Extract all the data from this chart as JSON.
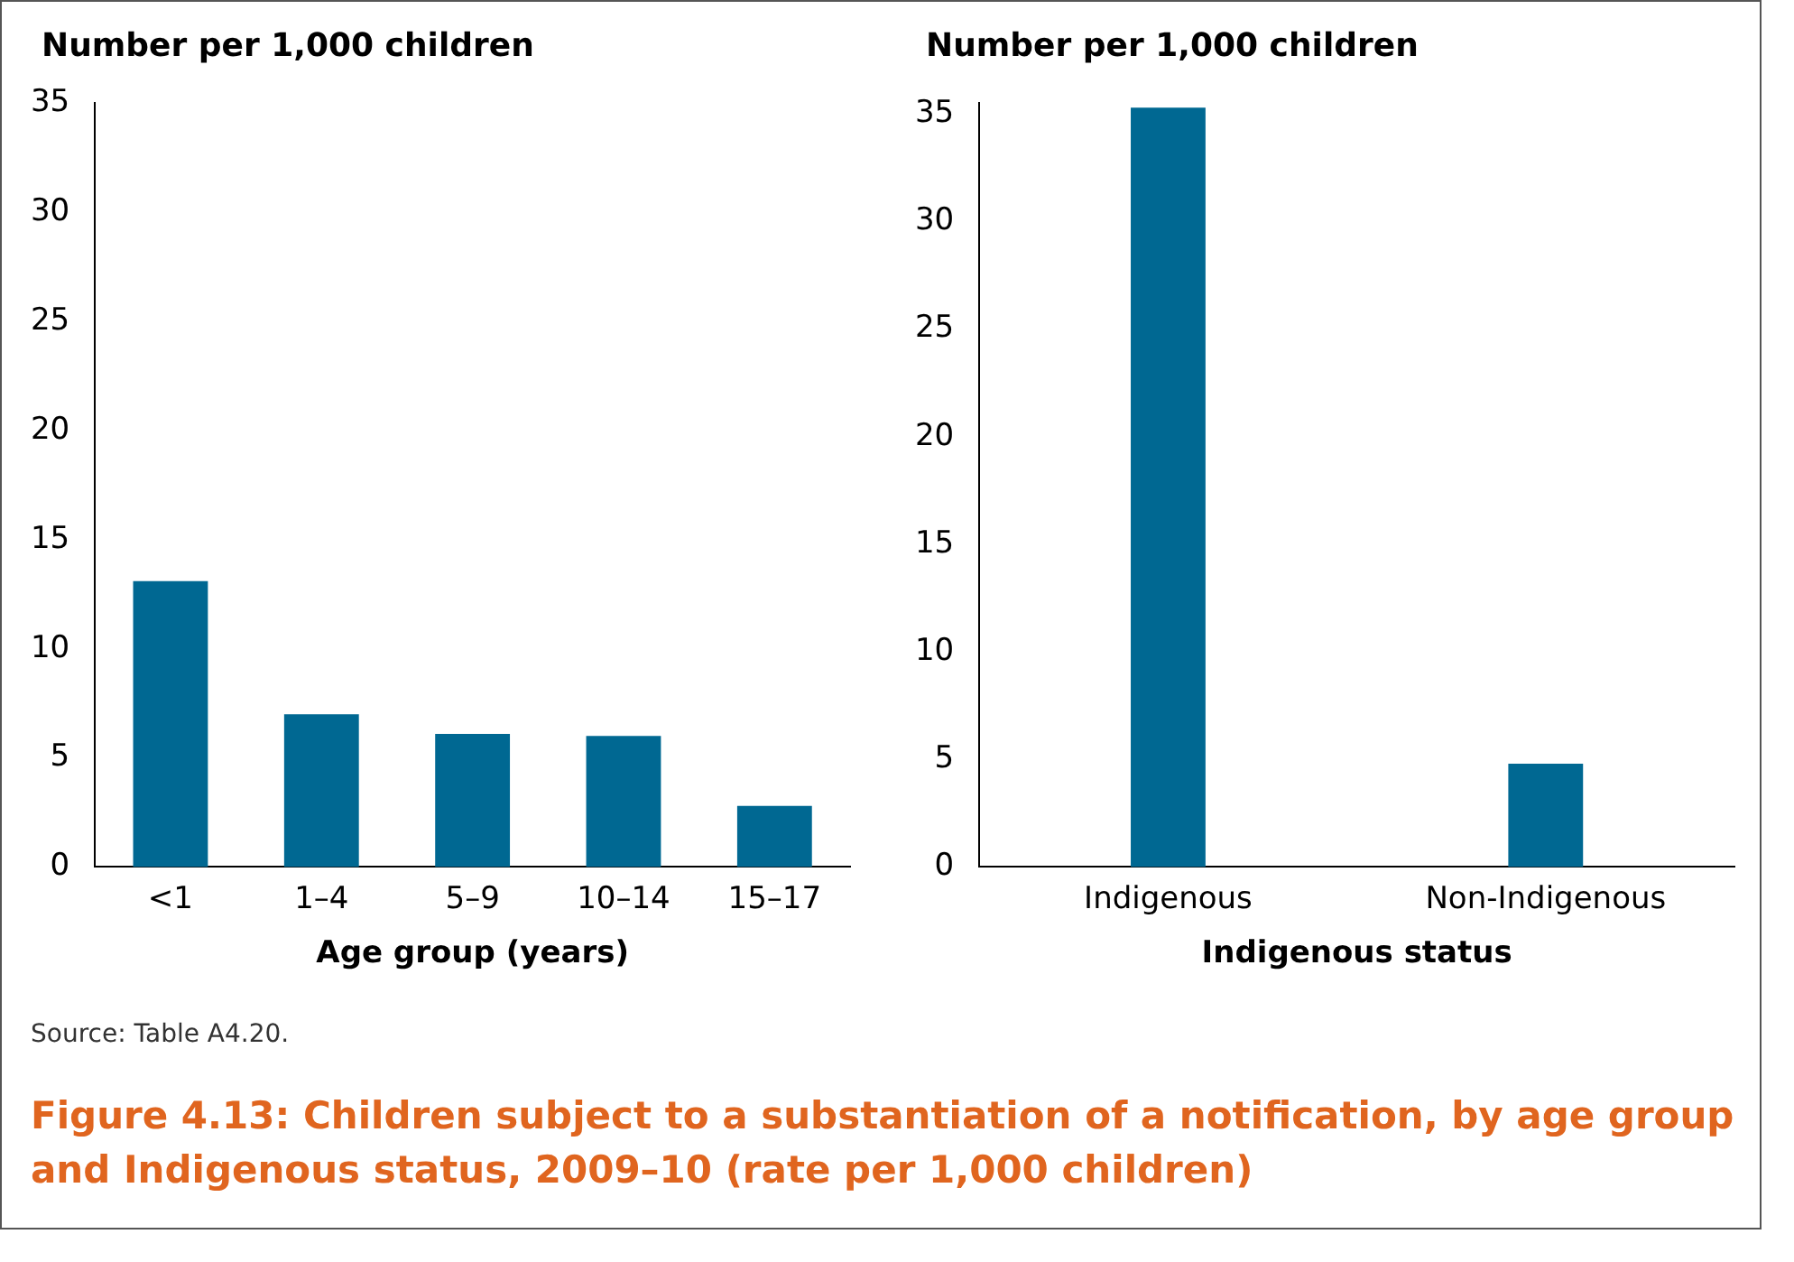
{
  "chart_data": [
    {
      "type": "bar",
      "ylabel": "Number per 1,000 children",
      "xlabel": "Age group (years)",
      "categories": [
        "<1",
        "1–4",
        "5–9",
        "10–14",
        "15–17"
      ],
      "values": [
        13.1,
        7.0,
        6.1,
        6.0,
        2.8
      ],
      "color": "#006892",
      "ylim": [
        0,
        35
      ],
      "yticks": [
        0,
        5,
        10,
        15,
        20,
        25,
        30,
        35
      ],
      "grid": false,
      "legend": false,
      "annotations": [
        "Source: Table A4.20."
      ],
      "title": "Figure 4.13: Children subject to a substantiation of a notification, by age group and Indigenous status, 2009–10 (rate per 1,000 children)"
    },
    {
      "type": "bar",
      "ylabel": "Number per 1,000 children",
      "xlabel": "Indigenous status",
      "categories": [
        "Indigenous",
        "Non-Indigenous"
      ],
      "values": [
        35.3,
        4.8
      ],
      "color": "#006892",
      "ylim": [
        0,
        35.5
      ],
      "yticks": [
        0,
        5,
        10,
        15,
        20,
        25,
        30,
        35
      ],
      "grid": false,
      "legend": false
    }
  ]
}
